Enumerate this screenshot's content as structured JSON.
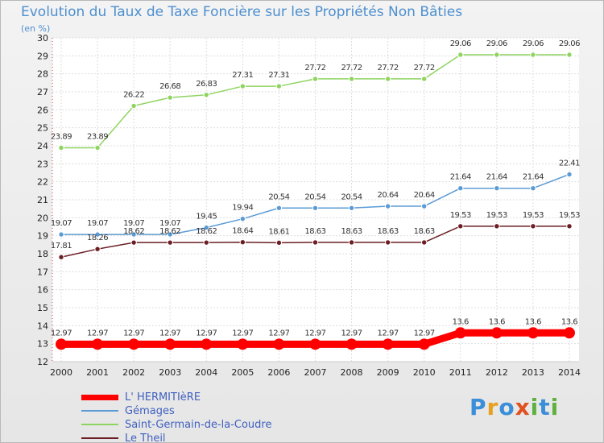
{
  "chart_data": {
    "type": "line",
    "title": "Evolution du Taux de Taxe Foncière sur les Propriétés Non Bâties",
    "unit_label": "(en %)",
    "x": [
      "2000",
      "2001",
      "2002",
      "2003",
      "2004",
      "2005",
      "2006",
      "2007",
      "2008",
      "2009",
      "2010",
      "2011",
      "2012",
      "2013",
      "2014"
    ],
    "ylim": [
      12,
      30
    ],
    "yticks": [
      12,
      13,
      14,
      15,
      16,
      17,
      18,
      19,
      20,
      21,
      22,
      23,
      24,
      25,
      26,
      27,
      28,
      29,
      30
    ],
    "grid": true,
    "legend_position": "bottom-left",
    "series": [
      {
        "name": "L' HERMITIèRE",
        "color": "#ff0000",
        "values": [
          12.97,
          12.97,
          12.97,
          12.97,
          12.97,
          12.97,
          12.97,
          12.97,
          12.97,
          12.97,
          12.97,
          13.6,
          13.6,
          13.6,
          13.6
        ],
        "labels": [
          "12.97",
          "12.97",
          "12.97",
          "12.97",
          "12.97",
          "12.97",
          "12.97",
          "12.97",
          "12.97",
          "12.97",
          "12.97",
          "13.6",
          "13.6",
          "13.6",
          "13.6"
        ]
      },
      {
        "name": "Gémages",
        "color": "#5b9bd5",
        "values": [
          19.07,
          19.07,
          19.07,
          19.07,
          19.45,
          19.94,
          20.54,
          20.54,
          20.54,
          20.64,
          20.64,
          21.64,
          21.64,
          21.64,
          22.41
        ],
        "labels": [
          "19.07",
          "19.07",
          "19.07",
          "19.07",
          "19.45",
          "19.94",
          "20.54",
          "20.54",
          "20.54",
          "20.64",
          "20.64",
          "21.64",
          "21.64",
          "21.64",
          "22.41"
        ]
      },
      {
        "name": "Saint-Germain-de-la-Coudre",
        "color": "#8fd460",
        "values": [
          23.89,
          23.89,
          26.22,
          26.68,
          26.83,
          27.31,
          27.31,
          27.72,
          27.72,
          27.72,
          27.72,
          29.06,
          29.06,
          29.06,
          29.06
        ],
        "labels": [
          "23.89",
          "23.89",
          "26.22",
          "26.68",
          "26.83",
          "27.31",
          "27.31",
          "27.72",
          "27.72",
          "27.72",
          "27.72",
          "29.06",
          "29.06",
          "29.06",
          "29.06"
        ]
      },
      {
        "name": "Le Theil",
        "color": "#6b1f24",
        "values": [
          17.81,
          18.26,
          18.62,
          18.62,
          18.62,
          18.64,
          18.61,
          18.63,
          18.63,
          18.63,
          18.63,
          19.53,
          19.53,
          19.53,
          19.53
        ],
        "labels": [
          "17.81",
          "18.26",
          "18.62",
          "18.62",
          "18.62",
          "18.64",
          "18.61",
          "18.63",
          "18.63",
          "18.63",
          "18.63",
          "19.53",
          "19.53",
          "19.53",
          "19.53"
        ]
      }
    ]
  },
  "logo": {
    "text": "Proxiti"
  }
}
